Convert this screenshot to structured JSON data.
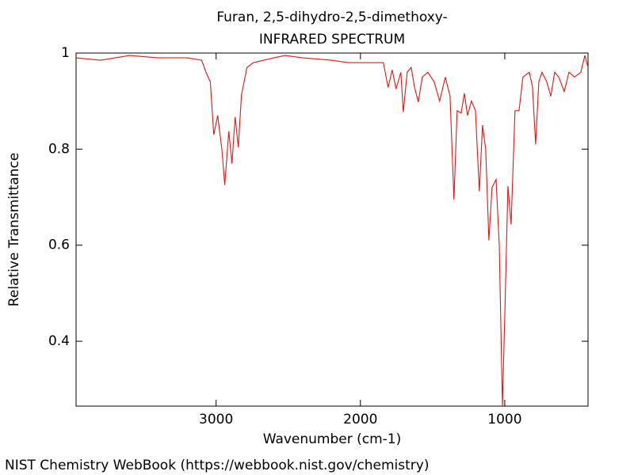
{
  "chart_data": {
    "type": "line",
    "title": "Furan, 2,5-dihydro-2,5-dimethoxy-",
    "subtitle": "INFRARED SPECTRUM",
    "x_label": "Wavenumber (cm-1)",
    "y_label": "Relative Transmittance",
    "source": "NIST Chemistry WebBook (https://webbook.nist.gov/chemistry)",
    "color": "#ee1111",
    "x_reversed": true,
    "xlim": [
      3970,
      423
    ],
    "ylim": [
      0.265,
      1
    ],
    "xticks": [
      3000,
      2000,
      1000
    ],
    "yticks": [
      0.4,
      0.6,
      0.8,
      1
    ],
    "x": [
      3970,
      3800,
      3600,
      3400,
      3200,
      3100,
      3070,
      3040,
      3016,
      2989,
      2960,
      2940,
      2912,
      2890,
      2868,
      2846,
      2824,
      2786,
      2742,
      2600,
      2522,
      2400,
      2200,
      2082,
      1900,
      1841,
      1808,
      1780,
      1753,
      1720,
      1703,
      1676,
      1648,
      1626,
      1599,
      1571,
      1533,
      1489,
      1451,
      1412,
      1379,
      1352,
      1330,
      1302,
      1280,
      1258,
      1231,
      1203,
      1176,
      1154,
      1132,
      1110,
      1088,
      1060,
      1038,
      1016,
      1000,
      978,
      956,
      929,
      901,
      874,
      830,
      808,
      786,
      764,
      742,
      709,
      681,
      654,
      626,
      588,
      555,
      517,
      473,
      445,
      423
    ],
    "values": [
      0.99,
      0.985,
      0.995,
      0.99,
      0.99,
      0.985,
      0.96,
      0.94,
      0.83,
      0.87,
      0.8,
      0.725,
      0.837,
      0.77,
      0.867,
      0.804,
      0.913,
      0.97,
      0.98,
      0.99,
      0.995,
      0.99,
      0.985,
      0.98,
      0.98,
      0.98,
      0.928,
      0.965,
      0.925,
      0.96,
      0.877,
      0.96,
      0.97,
      0.93,
      0.898,
      0.95,
      0.96,
      0.94,
      0.9,
      0.95,
      0.91,
      0.695,
      0.88,
      0.875,
      0.916,
      0.87,
      0.9,
      0.88,
      0.712,
      0.85,
      0.8,
      0.61,
      0.72,
      0.737,
      0.6,
      0.265,
      0.45,
      0.723,
      0.643,
      0.88,
      0.88,
      0.95,
      0.96,
      0.93,
      0.81,
      0.94,
      0.96,
      0.94,
      0.91,
      0.96,
      0.95,
      0.92,
      0.96,
      0.95,
      0.96,
      0.995,
      0.97
    ]
  }
}
